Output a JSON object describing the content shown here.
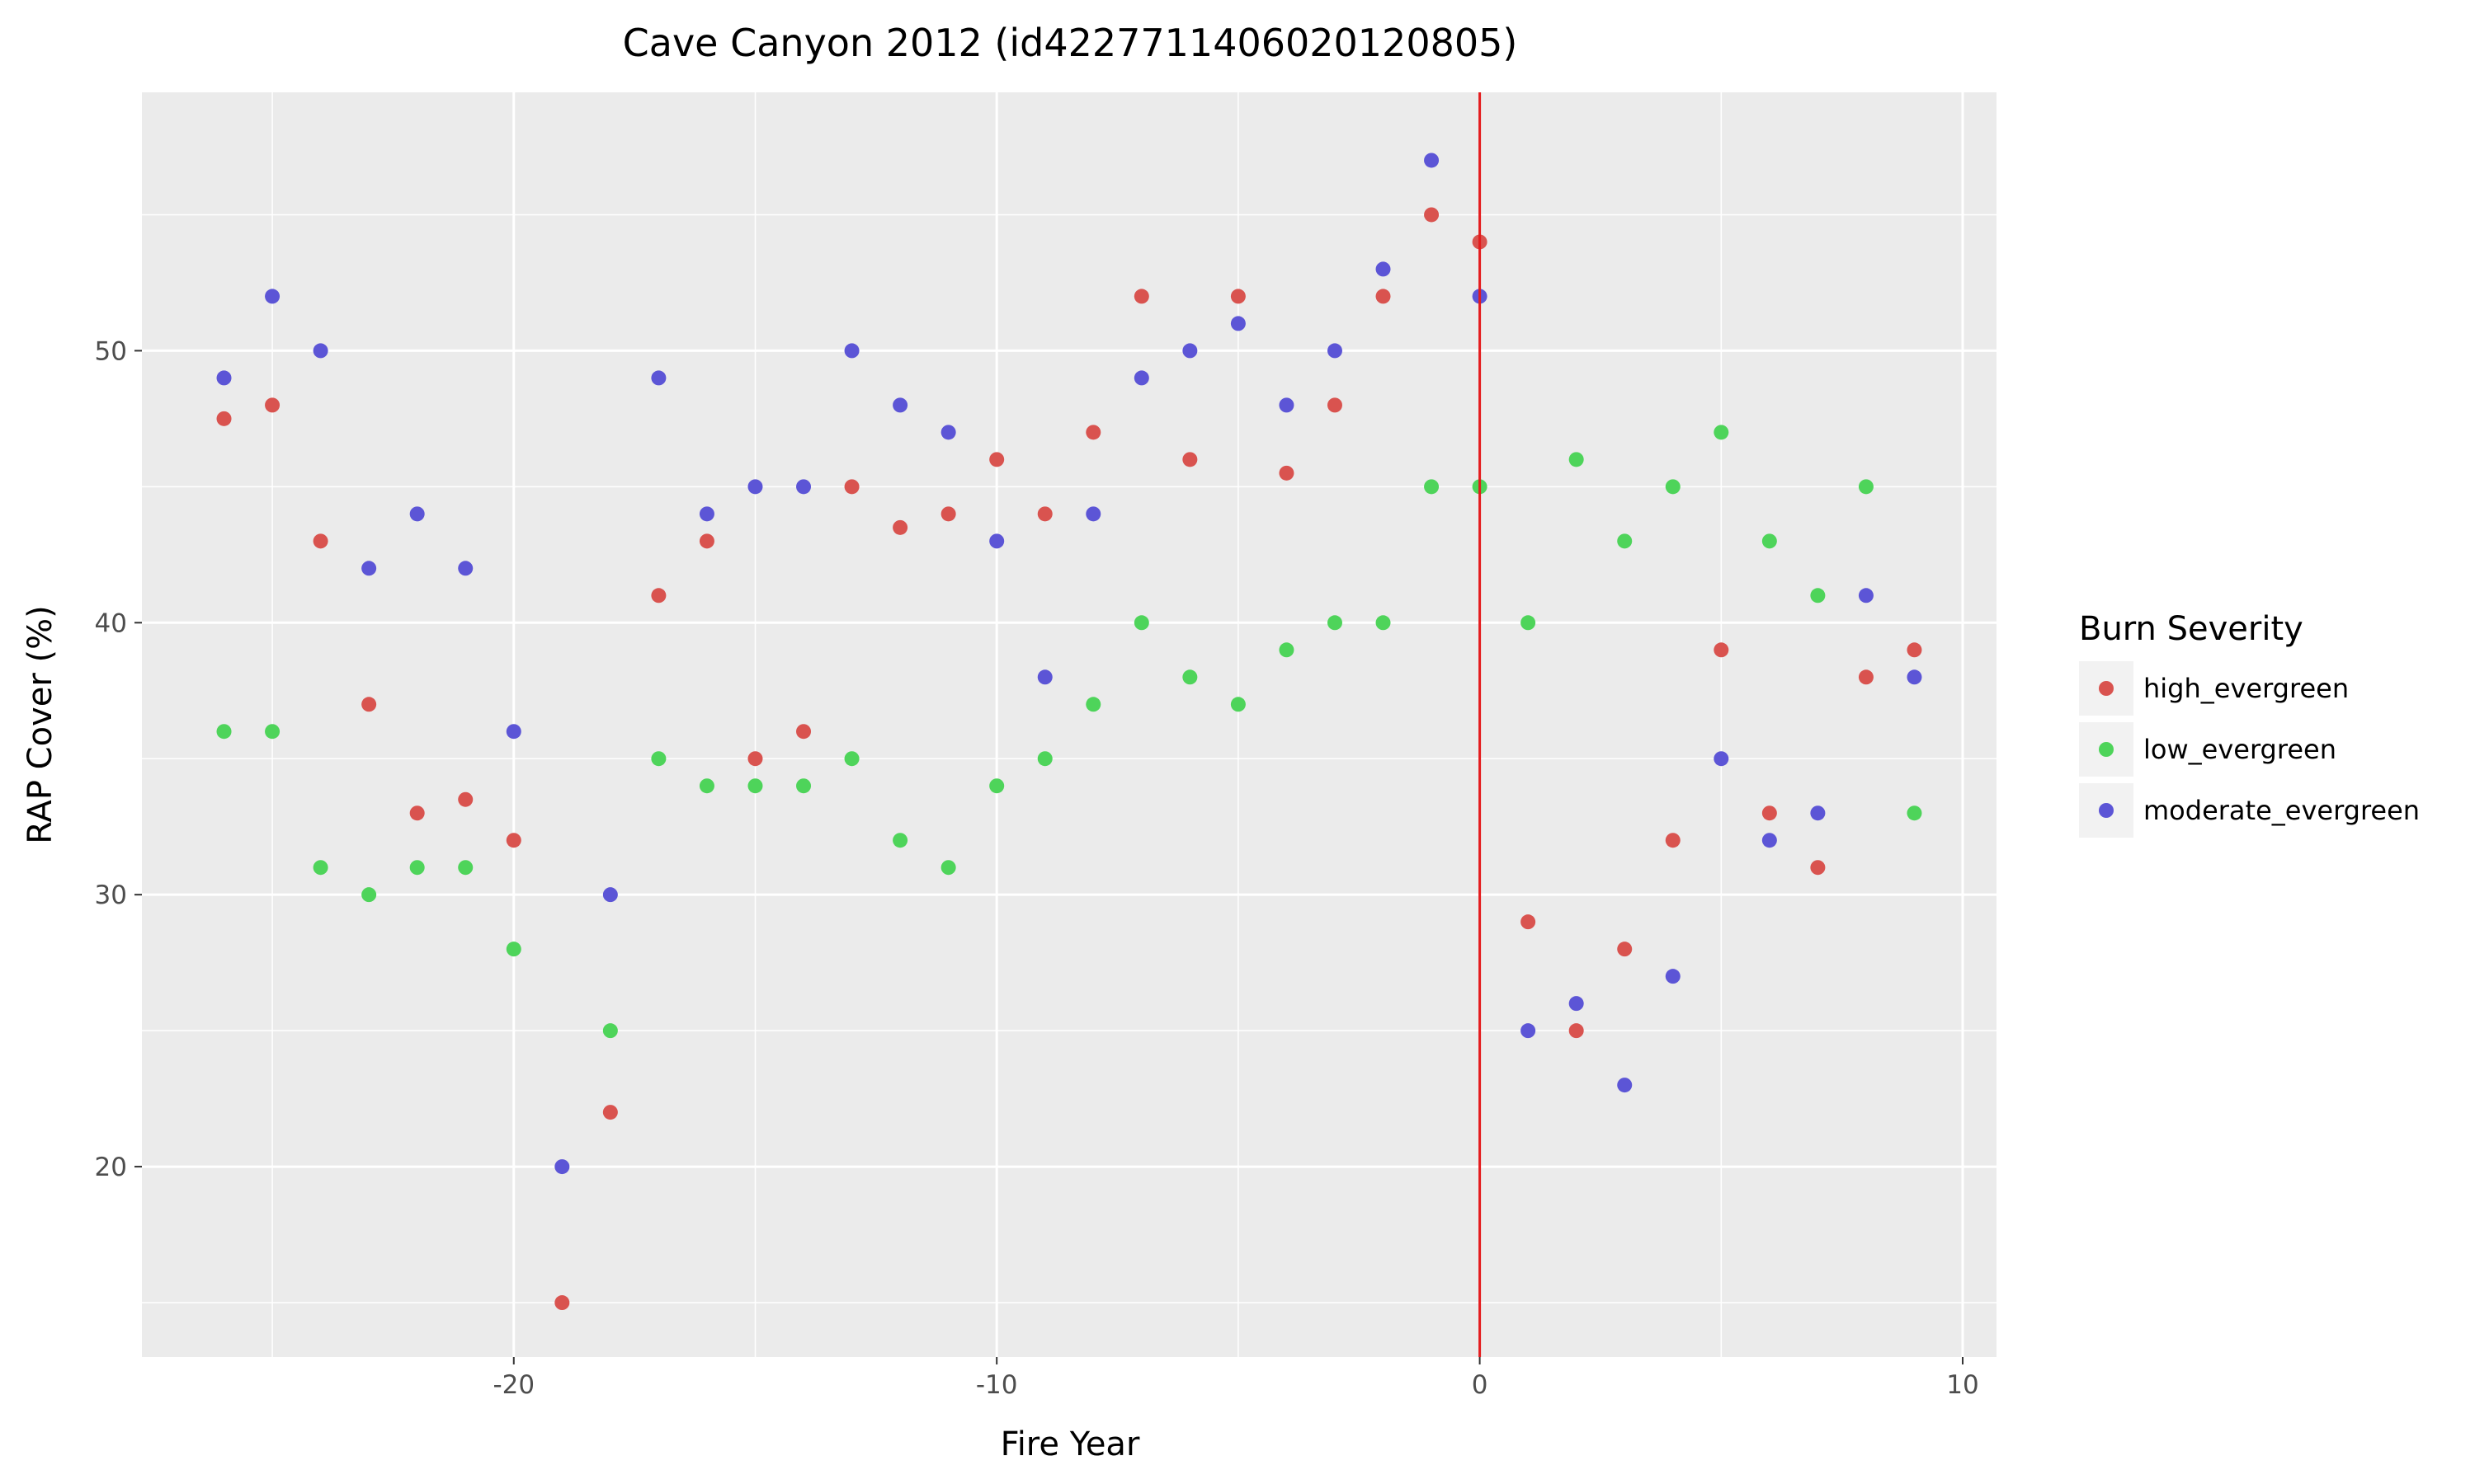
{
  "chart_data": {
    "type": "scatter",
    "title": "Cave Canyon 2012 (id422771140602012080​5)",
    "xlabel": "Fire Year",
    "ylabel": "RAP Cover (%)",
    "xlim": [
      -27.7,
      10.7
    ],
    "ylim": [
      13,
      59.5
    ],
    "x_ticks": [
      -20,
      -10,
      0,
      10
    ],
    "x_tick_labels": [
      "-20",
      "-10",
      "0",
      "10"
    ],
    "y_ticks": [
      20,
      30,
      40,
      50
    ],
    "y_tick_labels": [
      "20",
      "30",
      "40",
      "50"
    ],
    "grid": true,
    "vline_x": 0,
    "vline_color": "#e41a1c",
    "legend": {
      "title": "Burn Severity",
      "position": "right"
    },
    "series": [
      {
        "name": "high_evergreen",
        "color": "#d9534f",
        "x": [
          -26,
          -25,
          -24,
          -23,
          -22,
          -21,
          -20,
          -19,
          -18,
          -17,
          -16,
          -15,
          -14,
          -13,
          -12,
          -11,
          -10,
          -9,
          -8,
          -7,
          -6,
          -5,
          -4,
          -3,
          -2,
          -1,
          0,
          1,
          2,
          3,
          4,
          5,
          6,
          7,
          8,
          9
        ],
        "y": [
          47.5,
          48,
          43,
          37,
          33,
          33.5,
          32,
          15,
          22,
          41,
          43,
          35,
          36,
          45,
          43.5,
          44,
          46,
          44,
          47,
          52,
          46,
          52,
          45.5,
          48,
          52,
          55,
          54,
          29,
          25,
          28,
          32,
          39,
          33,
          31,
          38,
          39
        ]
      },
      {
        "name": "low_evergreen",
        "color": "#4ed45a",
        "x": [
          -26,
          -25,
          -24,
          -23,
          -22,
          -21,
          -20,
          -18,
          -17,
          -16,
          -15,
          -14,
          -13,
          -12,
          -11,
          -10,
          -9,
          -8,
          -7,
          -6,
          -5,
          -4,
          -3,
          -2,
          -1,
          0,
          1,
          2,
          3,
          4,
          5,
          6,
          7,
          8,
          9
        ],
        "y": [
          36,
          36,
          31,
          30,
          31,
          31,
          28,
          25,
          35,
          34,
          34,
          34,
          35,
          32,
          31,
          34,
          35,
          37,
          40,
          38,
          37,
          39,
          40,
          40,
          45,
          45,
          40,
          46,
          43,
          45,
          47,
          43,
          41,
          45,
          33
        ]
      },
      {
        "name": "moderate_evergreen",
        "color": "#5c55d6",
        "x": [
          -26,
          -25,
          -24,
          -23,
          -22,
          -21,
          -20,
          -19,
          -18,
          -17,
          -16,
          -15,
          -14,
          -13,
          -12,
          -11,
          -10,
          -9,
          -8,
          -7,
          -6,
          -5,
          -4,
          -3,
          -2,
          -1,
          0,
          1,
          2,
          3,
          4,
          5,
          6,
          7,
          8,
          9
        ],
        "y": [
          49,
          52,
          50,
          42,
          44,
          42,
          36,
          20,
          30,
          49,
          44,
          45,
          45,
          50,
          48,
          47,
          43,
          38,
          44,
          49,
          50,
          51,
          48,
          50,
          53,
          57,
          52,
          25,
          26,
          23,
          27,
          35,
          32,
          33,
          41,
          38
        ]
      }
    ]
  }
}
